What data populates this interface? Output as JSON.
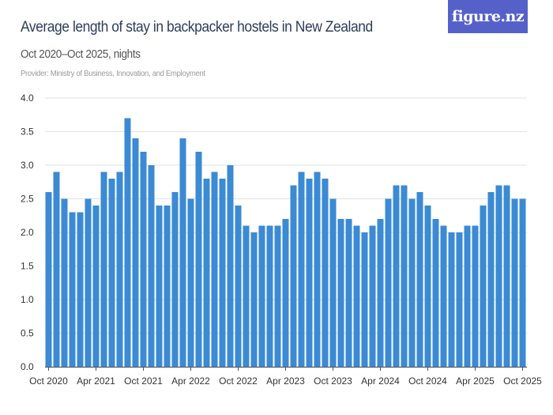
{
  "header": {
    "title": "Average length of stay in backpacker hostels in New Zealand",
    "subtitle": "Oct 2020–Oct 2025, nights",
    "provider": "Provider: Ministry of Business, Innovation, and Employment",
    "logo": "figure.nz",
    "logo_color": "#5561c9"
  },
  "chart_data": {
    "type": "bar",
    "title": "Average length of stay in backpacker hostels in New Zealand",
    "subtitle": "Oct 2020–Oct 2025, nights",
    "x_start": "Oct 2020",
    "x_end": "Oct 2025",
    "frequency": "monthly",
    "values": [
      2.6,
      2.9,
      2.5,
      2.3,
      2.3,
      2.5,
      2.4,
      2.9,
      2.8,
      2.9,
      3.7,
      3.4,
      3.2,
      3.0,
      2.4,
      2.4,
      2.6,
      3.4,
      2.5,
      3.2,
      2.8,
      2.9,
      2.8,
      3.0,
      2.4,
      2.1,
      2.0,
      2.1,
      2.1,
      2.1,
      2.2,
      2.7,
      2.9,
      2.8,
      2.9,
      2.8,
      2.5,
      2.2,
      2.2,
      2.1,
      2.0,
      2.1,
      2.2,
      2.5,
      2.7,
      2.7,
      2.5,
      2.6,
      2.4,
      2.2,
      2.1,
      2.0,
      2.0,
      2.1,
      2.1,
      2.4,
      2.6,
      2.7,
      2.7,
      2.5,
      2.5
    ],
    "x_tick_labels": [
      "Oct 2020",
      "Apr 2021",
      "Oct 2021",
      "Apr 2022",
      "Oct 2022",
      "Apr 2023",
      "Oct 2023",
      "Apr 2024",
      "Oct 2024",
      "Apr 2025",
      "Oct 2025"
    ],
    "y_tick_labels": [
      "0.0",
      "0.5",
      "1.0",
      "1.5",
      "2.0",
      "2.5",
      "3.0",
      "3.5",
      "4.0"
    ],
    "ylim": [
      0,
      4.0
    ],
    "grid": true,
    "bar_color": "#3b8ad4",
    "legend": "none"
  }
}
